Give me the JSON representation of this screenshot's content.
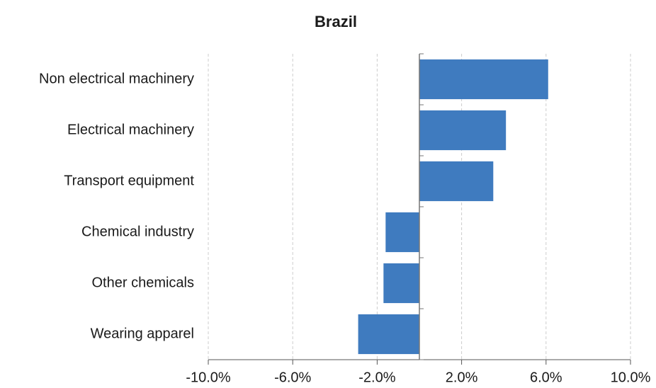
{
  "chart_data": {
    "type": "bar",
    "orientation": "horizontal",
    "title": "Brazil",
    "categories": [
      "Non electrical machinery",
      "Electrical machinery",
      "Transport equipment",
      "Chemical industry",
      "Other chemicals",
      "Wearing apparel"
    ],
    "values": [
      6.1,
      4.1,
      3.5,
      -1.6,
      -1.7,
      -2.9
    ],
    "color": "#3f7bbf",
    "xlim": [
      -10,
      10
    ],
    "xticks": [
      {
        "value": -10,
        "label": "-10.0%"
      },
      {
        "value": -6,
        "label": "-6.0%"
      },
      {
        "value": -2,
        "label": "-2.0%"
      },
      {
        "value": 2,
        "label": "2.0%"
      },
      {
        "value": 6,
        "label": "6.0%"
      },
      {
        "value": 10,
        "label": "10.0%"
      }
    ],
    "grid": true
  }
}
